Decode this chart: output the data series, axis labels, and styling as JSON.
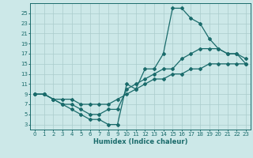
{
  "background_color": "#cce8e8",
  "grid_color": "#aacccc",
  "line_color": "#1a6b6b",
  "marker": "D",
  "marker_size": 2.0,
  "line_width": 0.9,
  "xlabel": "Humidex (Indice chaleur)",
  "xlim": [
    -0.5,
    23.5
  ],
  "ylim": [
    2,
    27
  ],
  "yticks": [
    3,
    5,
    7,
    9,
    11,
    13,
    15,
    17,
    19,
    21,
    23,
    25
  ],
  "xticks": [
    0,
    1,
    2,
    3,
    4,
    5,
    6,
    7,
    8,
    9,
    10,
    11,
    12,
    13,
    14,
    15,
    16,
    17,
    18,
    19,
    20,
    21,
    22,
    23
  ],
  "line1_x": [
    0,
    1,
    2,
    3,
    4,
    5,
    6,
    7,
    8,
    9,
    10,
    11,
    12,
    13,
    14,
    15,
    16,
    17,
    18,
    19,
    20,
    21,
    22,
    23
  ],
  "line1_y": [
    9,
    9,
    8,
    7,
    6,
    5,
    4,
    4,
    3,
    3,
    11,
    10,
    14,
    14,
    17,
    26,
    26,
    24,
    23,
    20,
    18,
    17,
    17,
    15
  ],
  "line2_x": [
    0,
    1,
    2,
    3,
    4,
    5,
    6,
    7,
    8,
    9,
    10,
    11,
    12,
    13,
    14,
    15,
    16,
    17,
    18,
    19,
    20,
    21,
    22,
    23
  ],
  "line2_y": [
    9,
    9,
    8,
    7,
    7,
    6,
    5,
    5,
    6,
    6,
    10,
    11,
    12,
    13,
    14,
    14,
    16,
    17,
    18,
    18,
    18,
    17,
    17,
    16
  ],
  "line3_x": [
    0,
    1,
    2,
    3,
    4,
    5,
    6,
    7,
    8,
    9,
    10,
    11,
    12,
    13,
    14,
    15,
    16,
    17,
    18,
    19,
    20,
    21,
    22,
    23
  ],
  "line3_y": [
    9,
    9,
    8,
    8,
    8,
    7,
    7,
    7,
    7,
    8,
    9,
    10,
    11,
    12,
    12,
    13,
    13,
    14,
    14,
    15,
    15,
    15,
    15,
    15
  ],
  "xlabel_fontsize": 6.0,
  "tick_fontsize": 5.0
}
